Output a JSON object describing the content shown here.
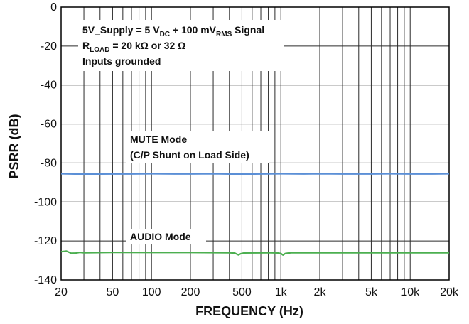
{
  "chart_data": {
    "type": "line",
    "xscale": "log",
    "xlabel": "FREQUENCY (Hz)",
    "ylabel": "PSRR (dB)",
    "xlim": [
      20,
      20000
    ],
    "ylim": [
      -140,
      0
    ],
    "grid": true,
    "x_ticks": [
      {
        "value": 20,
        "label": "20"
      },
      {
        "value": 50,
        "label": "50"
      },
      {
        "value": 100,
        "label": "100"
      },
      {
        "value": 200,
        "label": "200"
      },
      {
        "value": 500,
        "label": "500"
      },
      {
        "value": 1000,
        "label": "1k"
      },
      {
        "value": 2000,
        "label": "2k"
      },
      {
        "value": 5000,
        "label": "5k"
      },
      {
        "value": 10000,
        "label": "10k"
      },
      {
        "value": 20000,
        "label": "20k"
      }
    ],
    "y_ticks": [
      0,
      -20,
      -40,
      -60,
      -80,
      -100,
      -120,
      -140
    ],
    "conditions": {
      "line1_prefix": "5V_Supply = 5 V",
      "line1_sub1": "DC",
      "line1_mid": " + 100 mV",
      "line1_sub2": "RMS",
      "line1_suffix": " Signal",
      "line2_prefix": "R",
      "line2_sub": "LOAD",
      "line2_suffix": " = 20 kΩ or 32 Ω",
      "line3": "Inputs grounded"
    },
    "annotations": {
      "mute_line1": "MUTE Mode",
      "mute_line2": "(C/P Shunt on Load Side)",
      "audio": "AUDIO Mode"
    },
    "series": [
      {
        "color": "#5b8fd6",
        "points": [
          [
            20,
            -85.5
          ],
          [
            30,
            -85.7
          ],
          [
            50,
            -85.6
          ],
          [
            70,
            -85.6
          ],
          [
            100,
            -85.5
          ],
          [
            150,
            -85.6
          ],
          [
            200,
            -85.6
          ],
          [
            300,
            -85.5
          ],
          [
            500,
            -85.7
          ],
          [
            700,
            -85.6
          ],
          [
            1000,
            -85.5
          ],
          [
            1500,
            -85.6
          ],
          [
            2000,
            -85.5
          ],
          [
            3000,
            -85.6
          ],
          [
            5000,
            -85.6
          ],
          [
            7000,
            -85.5
          ],
          [
            10000,
            -85.6
          ],
          [
            15000,
            -85.6
          ],
          [
            20000,
            -85.5
          ]
        ]
      },
      {
        "color": "#4caf50",
        "points": [
          [
            20,
            -125.5
          ],
          [
            22,
            -125.2
          ],
          [
            24,
            -126.3
          ],
          [
            26,
            -126.2
          ],
          [
            28,
            -125.8
          ],
          [
            30,
            -126
          ],
          [
            50,
            -125.8
          ],
          [
            100,
            -125.9
          ],
          [
            200,
            -125.9
          ],
          [
            400,
            -126
          ],
          [
            440,
            -126.2
          ],
          [
            470,
            -127.1
          ],
          [
            490,
            -126.5
          ],
          [
            520,
            -126.1
          ],
          [
            800,
            -126
          ],
          [
            950,
            -126.1
          ],
          [
            1000,
            -126.4
          ],
          [
            1040,
            -127.2
          ],
          [
            1080,
            -126.4
          ],
          [
            1200,
            -126
          ],
          [
            2000,
            -126
          ],
          [
            5000,
            -126
          ],
          [
            10000,
            -126
          ],
          [
            20000,
            -126
          ]
        ]
      }
    ]
  }
}
